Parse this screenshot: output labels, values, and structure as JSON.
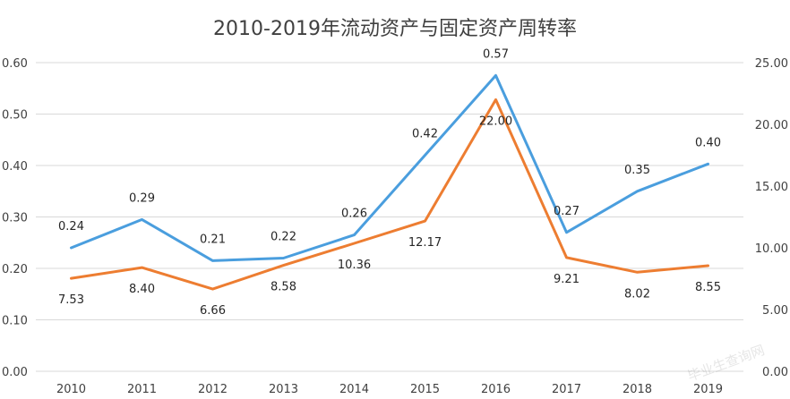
{
  "chart_data": {
    "type": "line",
    "title": "2010-2019年流动资产与固定资产周转率",
    "categories": [
      "2010",
      "2011",
      "2012",
      "2013",
      "2014",
      "2015",
      "2016",
      "2017",
      "2018",
      "2019"
    ],
    "series": [
      {
        "axis": "left",
        "color": "#4a9ede",
        "values": [
          0.24,
          0.295,
          0.215,
          0.22,
          0.265,
          0.42,
          0.575,
          0.27,
          0.35,
          0.403
        ],
        "labels": [
          "0.24",
          "0.29",
          "0.21",
          "0.22",
          "0.26",
          "0.42",
          "0.57",
          "0.27",
          "0.35",
          "0.40"
        ]
      },
      {
        "axis": "right",
        "color": "#ed7d31",
        "values": [
          7.53,
          8.4,
          6.66,
          8.58,
          10.36,
          12.17,
          22.0,
          9.21,
          8.02,
          8.55
        ],
        "labels": [
          "7.53",
          "8.40",
          "6.66",
          "8.58",
          "10.36",
          "12.17",
          "22.00",
          "9.21",
          "8.02",
          "8.55"
        ]
      }
    ],
    "y_left": {
      "min": 0,
      "max": 0.6,
      "ticks": [
        "0.00",
        "0.10",
        "0.20",
        "0.30",
        "0.40",
        "0.50",
        "0.60"
      ]
    },
    "y_right": {
      "min": 0,
      "max": 25,
      "ticks": [
        "0.00",
        "5.00",
        "10.00",
        "15.00",
        "20.00",
        "25.00"
      ]
    },
    "grid": true,
    "legend": "none"
  },
  "watermark": "毕业生查询网"
}
